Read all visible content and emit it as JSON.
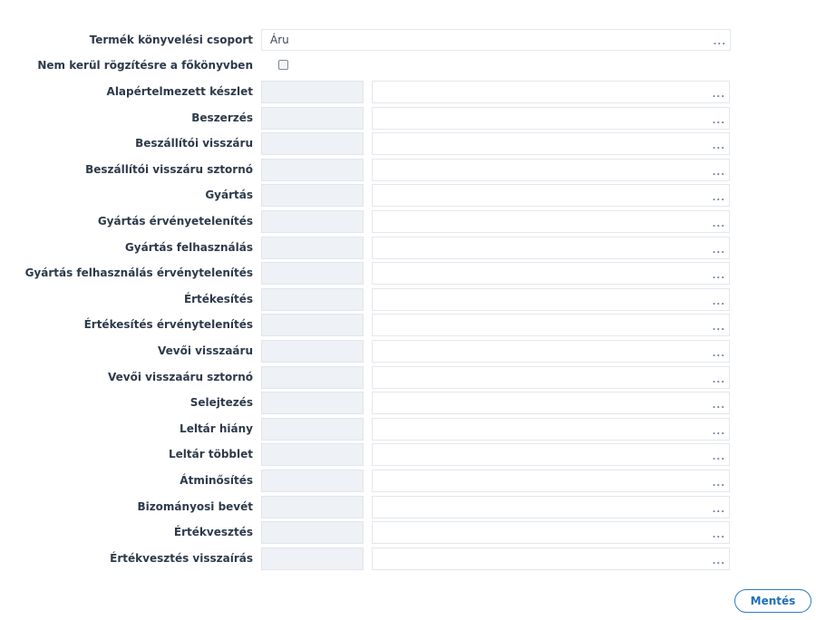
{
  "top_field": {
    "label": "Termék könyvelési csoport",
    "value": "Áru",
    "lookup": "..."
  },
  "checkbox_row": {
    "label": "Nem kerül rögzítésre a főkönyvben",
    "checked": false
  },
  "rows": [
    {
      "label": "Alapértelmezett készlet",
      "code": "",
      "description": "",
      "lookup": "..."
    },
    {
      "label": "Beszerzés",
      "code": "",
      "description": "",
      "lookup": "..."
    },
    {
      "label": "Beszállítói visszáru",
      "code": "",
      "description": "",
      "lookup": "..."
    },
    {
      "label": "Beszállítói visszáru sztornó",
      "code": "",
      "description": "",
      "lookup": "..."
    },
    {
      "label": "Gyártás",
      "code": "",
      "description": "",
      "lookup": "..."
    },
    {
      "label": "Gyártás érvényetelenítés",
      "code": "",
      "description": "",
      "lookup": "..."
    },
    {
      "label": "Gyártás felhasználás",
      "code": "",
      "description": "",
      "lookup": "..."
    },
    {
      "label": "Gyártás felhasználás érvénytelenítés",
      "code": "",
      "description": "",
      "lookup": "..."
    },
    {
      "label": "Értékesítés",
      "code": "",
      "description": "",
      "lookup": "..."
    },
    {
      "label": "Értékesítés érvénytelenítés",
      "code": "",
      "description": "",
      "lookup": "..."
    },
    {
      "label": "Vevői visszaáru",
      "code": "",
      "description": "",
      "lookup": "..."
    },
    {
      "label": "Vevői visszaáru sztornó",
      "code": "",
      "description": "",
      "lookup": "..."
    },
    {
      "label": "Selejtezés",
      "code": "",
      "description": "",
      "lookup": "..."
    },
    {
      "label": "Leltár hiány",
      "code": "",
      "description": "",
      "lookup": "..."
    },
    {
      "label": "Leltár többlet",
      "code": "",
      "description": "",
      "lookup": "..."
    },
    {
      "label": "Átminősítés",
      "code": "",
      "description": "",
      "lookup": "..."
    },
    {
      "label": "Bizományosi bevét",
      "code": "",
      "description": "",
      "lookup": "..."
    },
    {
      "label": "Értékvesztés",
      "code": "",
      "description": "",
      "lookup": "..."
    },
    {
      "label": "Értékvesztés visszaírás",
      "code": "",
      "description": "",
      "lookup": "..."
    }
  ],
  "save_button": {
    "label": "Mentés"
  },
  "colors": {
    "accent": "#1f6fb5",
    "readonly_bg": "#eef1f5",
    "border": "#e3e7ec",
    "label_text": "#2d3a4a"
  }
}
